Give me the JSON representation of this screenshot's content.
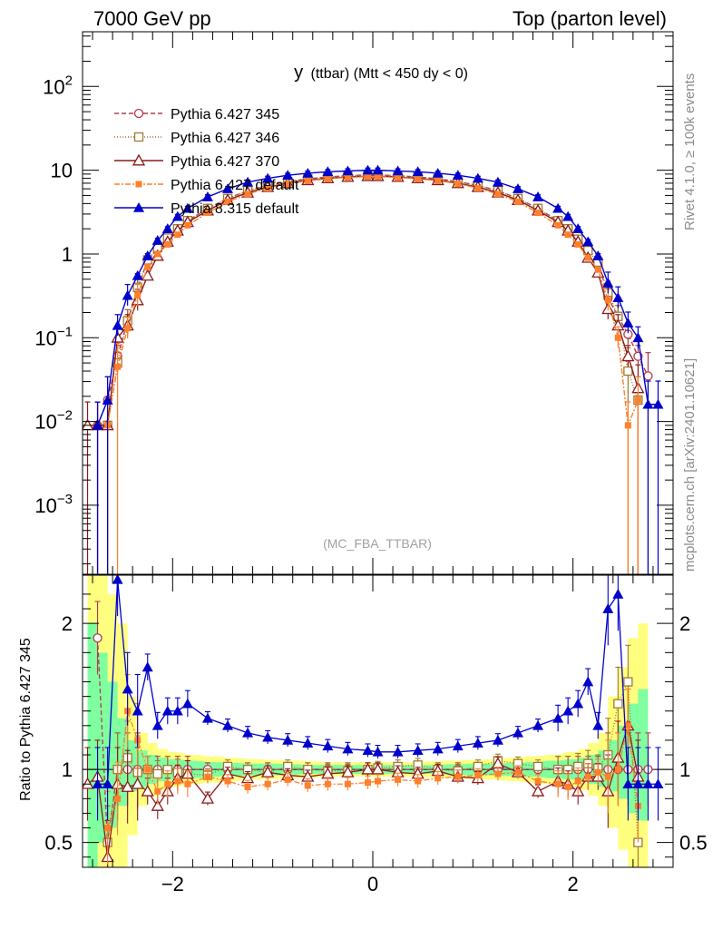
{
  "header": {
    "left": "7000 GeV pp",
    "right": "Top (parton level)"
  },
  "side_labels": {
    "rivet": "Rivet 4.1.0, ≥ 100k events",
    "mcplots": "mcplots.cern.ch [arXiv:2401.10621]"
  },
  "chart_data": {
    "type": "line",
    "title": "y",
    "title_sub": "(ttbar) (Mtt < 450 dy < 0)",
    "analysis": "(MC_FBA_TTBAR)",
    "xlabel": "",
    "ylabel": "",
    "ratio_ylabel": "Ratio to Pythia 6.427 345",
    "xlim": [
      -2.9,
      3.0
    ],
    "ylim": [
      0.00015,
      450
    ],
    "yscale": "log",
    "ratio_ylim": [
      0.33,
      2.33
    ],
    "x_ticks": [
      -2,
      0,
      2
    ],
    "x_tick_labels": [
      "−2",
      "0",
      "2"
    ],
    "y_ticks": [
      0.001,
      0.01,
      0.1,
      1,
      10,
      100
    ],
    "y_tick_labels": [
      {
        "base": "10",
        "exp": "−3"
      },
      {
        "base": "10",
        "exp": "−2"
      },
      {
        "base": "10",
        "exp": "−1"
      },
      {
        "base": "1",
        "exp": ""
      },
      {
        "base": "10",
        "exp": ""
      },
      {
        "base": "10",
        "exp": "2"
      }
    ],
    "ratio_ticks": [
      0.5,
      1,
      2
    ],
    "ratio_tick_labels": [
      "0.5",
      "1",
      "2"
    ],
    "bands": {
      "x": [
        -2.8,
        -2.7,
        -2.6,
        -2.5,
        -2.4,
        -2.3,
        -2.2,
        -2.1,
        -2.0,
        -1.8,
        -1.6,
        -1.4,
        -1.2,
        -1.0,
        -0.8,
        -0.6,
        -0.4,
        -0.2,
        0.0,
        0.2,
        0.4,
        0.6,
        0.8,
        1.0,
        1.2,
        1.4,
        1.6,
        1.8,
        2.0,
        2.1,
        2.2,
        2.3,
        2.4,
        2.5,
        2.6,
        2.7
      ],
      "yellow_lo": [
        0.33,
        0.33,
        0.33,
        0.33,
        0.55,
        0.75,
        0.82,
        0.86,
        0.88,
        0.9,
        0.91,
        0.92,
        0.93,
        0.935,
        0.94,
        0.945,
        0.95,
        0.95,
        0.95,
        0.95,
        0.95,
        0.945,
        0.94,
        0.935,
        0.93,
        0.92,
        0.91,
        0.9,
        0.88,
        0.86,
        0.82,
        0.75,
        0.6,
        0.45,
        0.33,
        0.33
      ],
      "yellow_hi": [
        2.33,
        2.33,
        2.2,
        2.0,
        1.5,
        1.25,
        1.18,
        1.14,
        1.12,
        1.1,
        1.09,
        1.08,
        1.07,
        1.065,
        1.06,
        1.055,
        1.05,
        1.05,
        1.05,
        1.05,
        1.05,
        1.055,
        1.06,
        1.065,
        1.07,
        1.08,
        1.09,
        1.1,
        1.12,
        1.14,
        1.18,
        1.25,
        1.5,
        1.7,
        1.9,
        2.0
      ],
      "green_lo": [
        0.33,
        0.5,
        0.6,
        0.75,
        0.85,
        0.88,
        0.9,
        0.92,
        0.93,
        0.94,
        0.95,
        0.955,
        0.96,
        0.96,
        0.965,
        0.97,
        0.97,
        0.97,
        0.97,
        0.97,
        0.97,
        0.97,
        0.965,
        0.96,
        0.96,
        0.955,
        0.95,
        0.94,
        0.93,
        0.92,
        0.9,
        0.88,
        0.85,
        0.8,
        0.7,
        0.65
      ],
      "green_hi": [
        2.0,
        1.8,
        1.6,
        1.35,
        1.2,
        1.13,
        1.1,
        1.08,
        1.07,
        1.06,
        1.05,
        1.045,
        1.04,
        1.04,
        1.035,
        1.03,
        1.03,
        1.03,
        1.03,
        1.03,
        1.03,
        1.03,
        1.035,
        1.04,
        1.04,
        1.045,
        1.05,
        1.06,
        1.07,
        1.08,
        1.1,
        1.13,
        1.2,
        1.3,
        1.45,
        1.55
      ]
    },
    "series": [
      {
        "name": "Pythia 6.427 345",
        "color": "#b2394d",
        "dash": "5,3",
        "marker": "open-circle",
        "x": [
          -2.75,
          -2.65,
          -2.55,
          -2.45,
          -2.35,
          -2.25,
          -2.15,
          -2.05,
          -1.95,
          -1.85,
          -1.65,
          -1.45,
          -1.25,
          -1.05,
          -0.85,
          -0.65,
          -0.45,
          -0.25,
          -0.05,
          0.05,
          0.25,
          0.45,
          0.65,
          0.85,
          1.05,
          1.25,
          1.45,
          1.65,
          1.85,
          1.95,
          2.05,
          2.15,
          2.25,
          2.35,
          2.45,
          2.55,
          2.65,
          2.75
        ],
        "y": [
          0.009,
          0.018,
          0.06,
          0.16,
          0.38,
          0.85,
          1.15,
          1.5,
          2.0,
          2.5,
          3.5,
          4.6,
          5.7,
          6.6,
          7.3,
          7.9,
          8.3,
          8.6,
          8.8,
          8.8,
          8.6,
          8.3,
          7.9,
          7.3,
          6.6,
          5.7,
          4.6,
          3.5,
          2.5,
          2.0,
          1.5,
          1.15,
          0.85,
          0.3,
          0.18,
          0.11,
          0.06,
          0.035
        ],
        "ratio": [
          1.9,
          0.5,
          1.0,
          1.0,
          1.0,
          1.0,
          1.0,
          1.0,
          1.0,
          1.0,
          1.0,
          1.0,
          1.0,
          1.0,
          1.0,
          1.0,
          1.0,
          1.0,
          1.0,
          1.0,
          1.0,
          1.0,
          1.0,
          1.0,
          1.0,
          1.0,
          1.0,
          1.0,
          1.0,
          1.0,
          1.0,
          1.0,
          1.0,
          1.0,
          1.0,
          1.0,
          1.0,
          1.0
        ]
      },
      {
        "name": "Pythia 6.427 346",
        "color": "#a07830",
        "dash": "1,2",
        "marker": "open-square",
        "x": [
          -2.65,
          -2.55,
          -2.45,
          -2.35,
          -2.25,
          -2.15,
          -2.05,
          -1.95,
          -1.85,
          -1.65,
          -1.45,
          -1.25,
          -1.05,
          -0.85,
          -0.65,
          -0.45,
          -0.25,
          -0.05,
          0.05,
          0.25,
          0.45,
          0.65,
          0.85,
          1.05,
          1.25,
          1.45,
          1.65,
          1.85,
          1.95,
          2.05,
          2.15,
          2.25,
          2.35,
          2.45,
          2.55,
          2.65
        ],
        "y": [
          0.009,
          0.05,
          0.16,
          0.4,
          0.85,
          1.2,
          1.55,
          2.0,
          2.5,
          3.5,
          4.6,
          5.7,
          6.6,
          7.3,
          7.9,
          8.3,
          8.6,
          8.8,
          8.8,
          8.6,
          8.3,
          7.9,
          7.3,
          6.6,
          5.7,
          4.6,
          3.5,
          2.5,
          2.0,
          1.5,
          1.1,
          0.8,
          0.35,
          0.18,
          0.04,
          0.018
        ],
        "ratio": [
          0.5,
          1.0,
          1.08,
          0.98,
          1.0,
          0.97,
          1.0,
          0.98,
          0.97,
          0.96,
          1.02,
          1.0,
          0.98,
          1.02,
          1.0,
          0.99,
          0.99,
          1.0,
          1.01,
          1.02,
          1.03,
          1.0,
          0.99,
          1.02,
          1.06,
          1.04,
          1.02,
          1.0,
          1.0,
          1.02,
          1.04,
          1.01,
          1.1,
          1.45,
          1.6,
          0.5
        ]
      },
      {
        "name": "Pythia 6.427 370",
        "color": "#8b1a1a",
        "dash": "",
        "marker": "open-triangle",
        "x": [
          -2.85,
          -2.75,
          -2.65,
          -2.55,
          -2.45,
          -2.35,
          -2.25,
          -2.15,
          -2.05,
          -1.95,
          -1.85,
          -1.65,
          -1.45,
          -1.25,
          -1.05,
          -0.85,
          -0.65,
          -0.45,
          -0.25,
          -0.05,
          0.05,
          0.25,
          0.45,
          0.65,
          0.85,
          1.05,
          1.25,
          1.45,
          1.65,
          1.85,
          1.95,
          2.05,
          2.15,
          2.25,
          2.35,
          2.45,
          2.55,
          2.65
        ],
        "y": [
          0.009,
          0.009,
          0.009,
          0.1,
          0.14,
          0.28,
          0.55,
          0.95,
          1.4,
          1.9,
          2.4,
          3.3,
          4.4,
          5.4,
          6.3,
          7.0,
          7.6,
          8.0,
          8.3,
          8.5,
          8.5,
          8.3,
          8.0,
          7.6,
          7.0,
          6.3,
          5.4,
          4.4,
          3.3,
          2.4,
          1.9,
          1.4,
          0.9,
          0.6,
          0.22,
          0.14,
          0.06,
          0.025
        ],
        "ratio": [
          0.9,
          0.95,
          0.4,
          0.9,
          0.88,
          0.9,
          0.85,
          0.75,
          0.85,
          0.94,
          0.97,
          0.8,
          0.97,
          0.94,
          0.98,
          0.96,
          0.95,
          0.97,
          0.98,
          1.0,
          1.0,
          0.98,
          0.97,
          0.99,
          0.95,
          0.94,
          1.04,
          0.98,
          0.85,
          0.92,
          0.9,
          0.85,
          0.95,
          0.95,
          0.85,
          1.08,
          1.3,
          0.95
        ]
      },
      {
        "name": "Pythia 6.427 default",
        "color": "#ff7f2a",
        "dash": "6,2,2,2",
        "marker": "filled-square",
        "x": [
          -2.65,
          -2.55,
          -2.45,
          -2.35,
          -2.25,
          -2.15,
          -2.05,
          -1.95,
          -1.85,
          -1.65,
          -1.45,
          -1.25,
          -1.05,
          -0.85,
          -0.65,
          -0.45,
          -0.25,
          -0.05,
          0.05,
          0.25,
          0.45,
          0.65,
          0.85,
          1.05,
          1.25,
          1.45,
          1.65,
          1.85,
          1.95,
          2.05,
          2.15,
          2.25,
          2.35,
          2.45,
          2.55,
          2.65
        ],
        "y": [
          0.009,
          0.045,
          0.13,
          0.32,
          0.7,
          1.0,
          1.3,
          1.7,
          2.2,
          3.1,
          4.2,
          5.2,
          6.1,
          6.9,
          7.5,
          7.9,
          8.2,
          8.4,
          8.4,
          8.2,
          7.9,
          7.5,
          6.9,
          6.1,
          5.2,
          4.2,
          3.1,
          2.2,
          1.7,
          1.3,
          0.9,
          0.65,
          0.28,
          0.1,
          0.009,
          0.018
        ],
        "ratio": [
          0.6,
          0.8,
          1.4,
          1.2,
          1.0,
          0.85,
          0.9,
          0.92,
          0.9,
          0.95,
          0.92,
          0.88,
          0.9,
          0.93,
          0.89,
          0.9,
          0.9,
          0.91,
          0.92,
          0.93,
          0.92,
          0.94,
          0.95,
          0.96,
          0.97,
          0.98,
          0.92,
          0.9,
          0.88,
          0.92,
          0.95,
          0.98,
          0.95,
          1.0,
          1.3,
          0.75
        ]
      },
      {
        "name": "Pythia 8.315 default",
        "color": "#0000cc",
        "dash": "",
        "marker": "filled-triangle",
        "x": [
          -2.75,
          -2.65,
          -2.55,
          -2.45,
          -2.35,
          -2.25,
          -2.15,
          -2.05,
          -1.95,
          -1.85,
          -1.65,
          -1.45,
          -1.25,
          -1.05,
          -0.85,
          -0.65,
          -0.45,
          -0.25,
          -0.05,
          0.05,
          0.25,
          0.45,
          0.65,
          0.85,
          1.05,
          1.25,
          1.45,
          1.65,
          1.85,
          1.95,
          2.05,
          2.15,
          2.25,
          2.35,
          2.45,
          2.55,
          2.65,
          2.75,
          2.85
        ],
        "y": [
          0.009,
          0.018,
          0.14,
          0.32,
          0.55,
          0.95,
          1.45,
          2.0,
          2.8,
          3.5,
          4.8,
          6.0,
          7.2,
          8.0,
          8.7,
          9.2,
          9.6,
          9.8,
          10.0,
          10.0,
          9.8,
          9.6,
          9.2,
          8.7,
          8.0,
          7.2,
          6.0,
          4.8,
          3.5,
          2.8,
          2.0,
          1.4,
          0.95,
          0.45,
          0.3,
          0.15,
          0.1,
          0.016,
          0.016
        ],
        "ratio": [
          0.9,
          0.9,
          2.3,
          1.55,
          1.4,
          1.7,
          1.3,
          1.4,
          1.4,
          1.45,
          1.35,
          1.3,
          1.25,
          1.22,
          1.2,
          1.18,
          1.16,
          1.14,
          1.13,
          1.12,
          1.12,
          1.13,
          1.14,
          1.16,
          1.18,
          1.2,
          1.25,
          1.3,
          1.35,
          1.4,
          1.45,
          1.6,
          1.3,
          2.1,
          2.2,
          0.9,
          0.9,
          0.9,
          0.9
        ]
      }
    ]
  }
}
